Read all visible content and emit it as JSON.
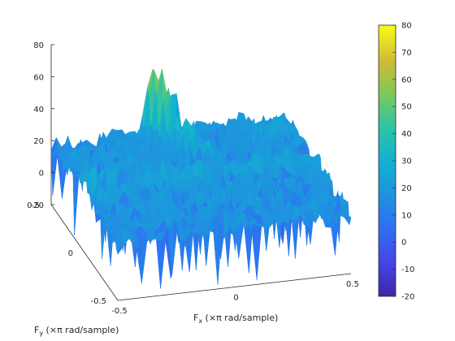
{
  "chart_data": {
    "type": "surface",
    "description_source": "3-D surface of a 2-D spectrum with colorbar",
    "xlabel": "F_x (×π rad/sample)",
    "xlabel_main": "F",
    "xlabel_sub": "x",
    "xlabel_rest": " (×π rad/sample)",
    "ylabel": "F_y (×π rad/sample)",
    "ylabel_main": "F",
    "ylabel_sub": "y",
    "ylabel_rest": " (×π rad/sample)",
    "x_ticks": [
      "-0.5",
      "0",
      "0.5"
    ],
    "y_ticks": [
      "-0.5",
      "0",
      "0.5"
    ],
    "z_ticks": [
      "-20",
      "0",
      "20",
      "40",
      "60",
      "80"
    ],
    "xlim": [
      -0.5,
      0.5
    ],
    "ylim": [
      -0.5,
      0.5
    ],
    "zlim": [
      -20,
      80
    ],
    "colorbar": {
      "ticks": [
        "-20",
        "-10",
        "0",
        "10",
        "20",
        "30",
        "40",
        "50",
        "60",
        "70",
        "80"
      ],
      "range": [
        -20,
        80
      ],
      "colormap": "parula"
    },
    "surface_features": {
      "background_level": 20,
      "corner_lobe_level": 25,
      "ridge_peak_level": 60,
      "noise_floor_min": -20
    }
  }
}
